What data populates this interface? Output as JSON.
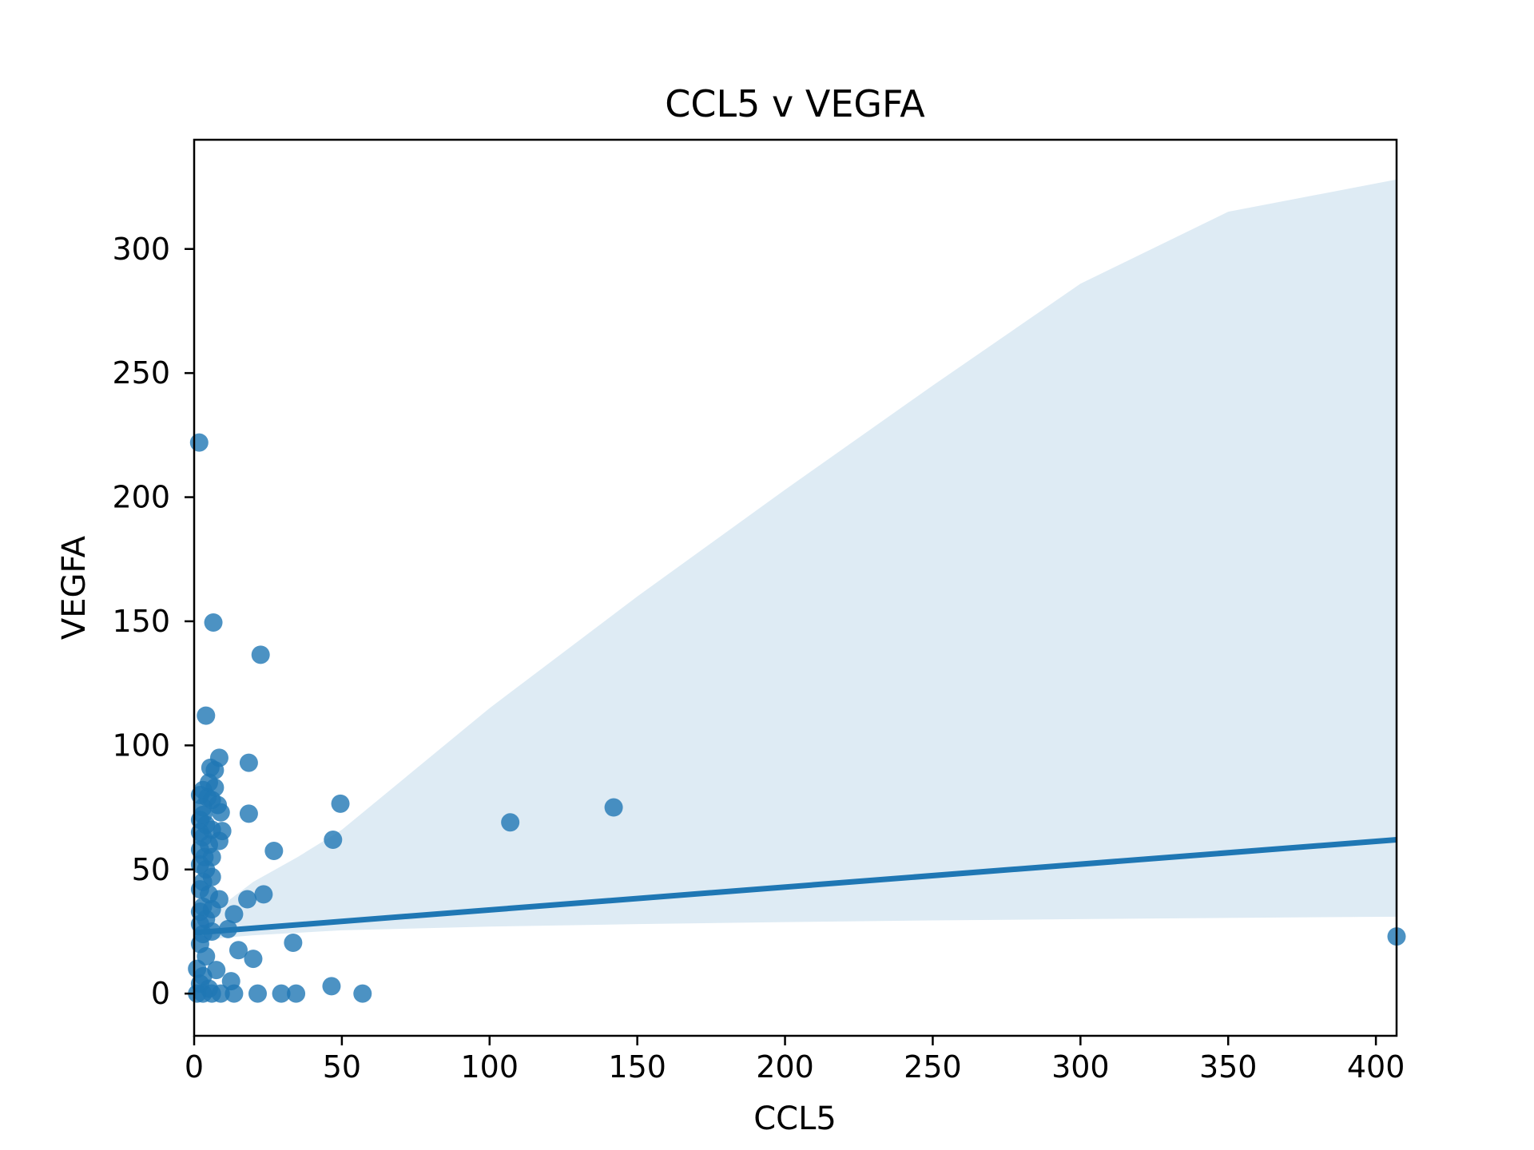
{
  "chart_data": {
    "type": "scatter",
    "title": "CCL5 v VEGFA",
    "xlabel": "CCL5",
    "ylabel": "VEGFA",
    "xlim": [
      0,
      407
    ],
    "ylim": [
      -17,
      344
    ],
    "xticks": [
      0,
      50,
      100,
      150,
      200,
      250,
      300,
      350,
      400
    ],
    "yticks": [
      0,
      50,
      100,
      150,
      200,
      250,
      300
    ],
    "grid": false,
    "legend": "none",
    "color": "#1f77b4",
    "band_color": "#1f77b4",
    "points": [
      [
        1.7,
        222
      ],
      [
        6.5,
        149.5
      ],
      [
        22.5,
        136.5
      ],
      [
        4,
        112
      ],
      [
        8.5,
        95
      ],
      [
        18.5,
        93
      ],
      [
        5.5,
        91
      ],
      [
        7,
        90
      ],
      [
        5,
        85
      ],
      [
        7,
        83
      ],
      [
        3,
        82
      ],
      [
        4.5,
        79
      ],
      [
        2,
        80
      ],
      [
        6,
        78
      ],
      [
        8,
        76
      ],
      [
        9,
        73
      ],
      [
        18.5,
        72.5
      ],
      [
        3,
        75
      ],
      [
        2,
        70
      ],
      [
        4,
        68
      ],
      [
        6,
        66
      ],
      [
        9.5,
        65.5
      ],
      [
        3,
        63
      ],
      [
        8.5,
        61.5
      ],
      [
        5,
        60
      ],
      [
        2,
        58
      ],
      [
        3.5,
        55
      ],
      [
        6,
        55
      ],
      [
        27,
        57.5
      ],
      [
        2,
        52
      ],
      [
        4,
        50
      ],
      [
        6,
        47
      ],
      [
        3,
        45
      ],
      [
        2,
        42
      ],
      [
        5,
        40
      ],
      [
        23.5,
        40
      ],
      [
        8.5,
        38
      ],
      [
        18,
        38
      ],
      [
        3,
        35
      ],
      [
        6,
        34
      ],
      [
        2,
        33
      ],
      [
        13.5,
        32
      ],
      [
        4,
        30
      ],
      [
        2,
        28
      ],
      [
        11.5,
        26
      ],
      [
        6,
        25
      ],
      [
        3,
        24
      ],
      [
        33.5,
        20.5
      ],
      [
        15,
        17.5
      ],
      [
        20,
        14
      ],
      [
        2,
        20
      ],
      [
        4,
        15
      ],
      [
        1,
        10
      ],
      [
        7.5,
        9.5
      ],
      [
        3,
        7
      ],
      [
        12.5,
        5
      ],
      [
        46.5,
        3
      ],
      [
        2,
        4
      ],
      [
        5,
        2
      ],
      [
        1,
        0
      ],
      [
        3,
        0
      ],
      [
        6,
        0
      ],
      [
        9,
        0
      ],
      [
        13.5,
        0
      ],
      [
        21.5,
        0
      ],
      [
        29.5,
        0
      ],
      [
        34.5,
        0
      ],
      [
        57,
        0
      ],
      [
        2,
        65
      ],
      [
        3,
        72
      ],
      [
        49.5,
        76.5
      ],
      [
        47,
        62
      ],
      [
        107,
        69
      ],
      [
        142,
        75
      ],
      [
        407,
        23
      ]
    ],
    "regression": {
      "x": [
        0,
        407
      ],
      "y": [
        24.5,
        62
      ]
    },
    "ci_band": {
      "x": [
        0,
        10,
        20,
        35,
        50,
        100,
        150,
        200,
        250,
        300,
        350,
        407
      ],
      "upper": [
        28,
        36,
        45,
        55,
        66,
        115,
        160,
        203,
        245,
        286,
        315,
        328
      ],
      "lower": [
        21,
        22.5,
        23.5,
        24.5,
        25.5,
        27,
        28,
        28.8,
        29.5,
        30,
        30.5,
        31
      ]
    }
  }
}
